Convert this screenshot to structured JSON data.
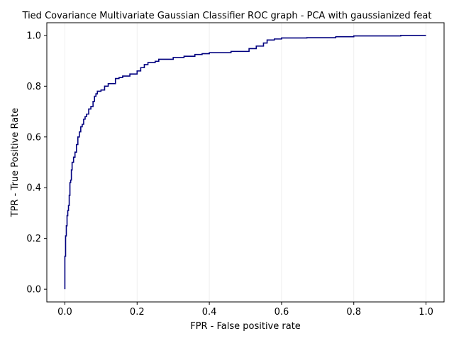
{
  "chart_data": {
    "type": "line",
    "title": "Tied Covariance Multivariate Gaussian Classifier ROC graph - PCA with gaussianized feat",
    "xlabel": "FPR - False positive rate",
    "ylabel": "TPR - True Positive Rate",
    "xlim": [
      -0.05,
      1.05
    ],
    "ylim": [
      -0.05,
      1.05
    ],
    "xticks": [
      0.0,
      0.2,
      0.4,
      0.6,
      0.8,
      1.0
    ],
    "xtick_labels": [
      "0.0",
      "0.2",
      "0.4",
      "0.6",
      "0.8",
      "1.0"
    ],
    "yticks": [
      0.0,
      0.2,
      0.4,
      0.6,
      0.8,
      1.0
    ],
    "ytick_labels": [
      "0.0",
      "0.2",
      "0.4",
      "0.6",
      "0.8",
      "1.0"
    ],
    "grid": "vertical",
    "line_color": "#00007f",
    "series": [
      {
        "x": [
          0.0,
          0.0,
          0.002,
          0.002,
          0.004,
          0.004,
          0.006,
          0.006,
          0.008,
          0.008,
          0.01,
          0.01,
          0.012,
          0.012,
          0.014,
          0.014,
          0.016,
          0.016,
          0.018,
          0.018,
          0.02,
          0.02,
          0.024,
          0.024,
          0.028,
          0.028,
          0.032,
          0.032,
          0.036,
          0.036,
          0.04,
          0.04,
          0.044,
          0.044,
          0.048,
          0.048,
          0.052,
          0.052,
          0.056,
          0.056,
          0.06,
          0.06,
          0.066,
          0.066,
          0.072,
          0.072,
          0.078,
          0.078,
          0.082,
          0.082,
          0.086,
          0.086,
          0.09,
          0.09,
          0.1,
          0.1,
          0.11,
          0.11,
          0.12,
          0.12,
          0.14,
          0.14,
          0.15,
          0.15,
          0.16,
          0.16,
          0.18,
          0.18,
          0.2,
          0.2,
          0.21,
          0.21,
          0.22,
          0.22,
          0.23,
          0.23,
          0.25,
          0.25,
          0.26,
          0.26,
          0.3,
          0.3,
          0.33,
          0.33,
          0.36,
          0.36,
          0.38,
          0.38,
          0.4,
          0.4,
          0.46,
          0.46,
          0.51,
          0.51,
          0.53,
          0.53,
          0.55,
          0.55,
          0.56,
          0.56,
          0.58,
          0.58,
          0.6,
          0.6,
          0.67,
          0.67,
          0.75,
          0.75,
          0.8,
          0.8,
          0.93,
          0.93,
          1.0
        ],
        "y": [
          0.0,
          0.13,
          0.13,
          0.21,
          0.21,
          0.25,
          0.25,
          0.29,
          0.29,
          0.31,
          0.31,
          0.33,
          0.33,
          0.37,
          0.37,
          0.42,
          0.42,
          0.43,
          0.43,
          0.47,
          0.47,
          0.5,
          0.5,
          0.52,
          0.52,
          0.54,
          0.54,
          0.57,
          0.57,
          0.6,
          0.6,
          0.62,
          0.62,
          0.64,
          0.64,
          0.65,
          0.65,
          0.67,
          0.67,
          0.68,
          0.68,
          0.69,
          0.69,
          0.71,
          0.71,
          0.72,
          0.72,
          0.74,
          0.74,
          0.76,
          0.76,
          0.77,
          0.77,
          0.78,
          0.78,
          0.785,
          0.785,
          0.8,
          0.8,
          0.81,
          0.81,
          0.83,
          0.83,
          0.834,
          0.834,
          0.84,
          0.84,
          0.848,
          0.848,
          0.86,
          0.86,
          0.873,
          0.873,
          0.885,
          0.885,
          0.893,
          0.893,
          0.898,
          0.898,
          0.906,
          0.906,
          0.913,
          0.913,
          0.918,
          0.918,
          0.925,
          0.925,
          0.928,
          0.928,
          0.932,
          0.932,
          0.937,
          0.937,
          0.948,
          0.948,
          0.958,
          0.958,
          0.97,
          0.97,
          0.982,
          0.982,
          0.986,
          0.986,
          0.99,
          0.99,
          0.991,
          0.991,
          0.995,
          0.995,
          0.998,
          0.998,
          1.0,
          1.0
        ]
      }
    ]
  }
}
